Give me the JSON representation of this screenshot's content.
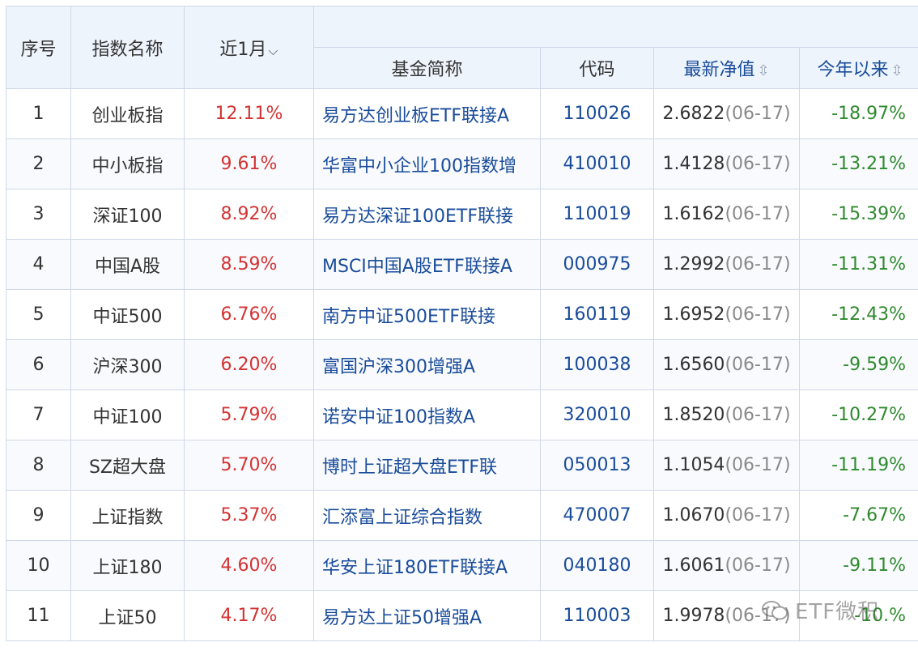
{
  "header": {
    "col_index": "序号",
    "col_name": "指数名称",
    "col_month": "近1月",
    "month_sort_glyph": "⌵",
    "col_fund": "基金简称",
    "col_code": "代码",
    "col_nav": "最新净值",
    "col_ytd": "今年以来",
    "sort_glyph": "⇳"
  },
  "rows": [
    {
      "idx": "1",
      "name": "创业板指",
      "month": "12.11%",
      "fund": "易方达创业板ETF联接A",
      "code": "110026",
      "nav": "2.6822",
      "date": "(06-17)",
      "ytd": "-18.97%"
    },
    {
      "idx": "2",
      "name": "中小板指",
      "month": "9.61%",
      "fund": "华富中小企业100指数增",
      "code": "410010",
      "nav": "1.4128",
      "date": "(06-17)",
      "ytd": "-13.21%"
    },
    {
      "idx": "3",
      "name": "深证100",
      "month": "8.92%",
      "fund": "易方达深证100ETF联接",
      "code": "110019",
      "nav": "1.6162",
      "date": "(06-17)",
      "ytd": "-15.39%"
    },
    {
      "idx": "4",
      "name": "中国A股",
      "month": "8.59%",
      "fund": "MSCI中国A股ETF联接A",
      "code": "000975",
      "nav": "1.2992",
      "date": "(06-17)",
      "ytd": "-11.31%"
    },
    {
      "idx": "5",
      "name": "中证500",
      "month": "6.76%",
      "fund": "南方中证500ETF联接",
      "code": "160119",
      "nav": "1.6952",
      "date": "(06-17)",
      "ytd": "-12.43%"
    },
    {
      "idx": "6",
      "name": "沪深300",
      "month": "6.20%",
      "fund": "富国沪深300增强A",
      "code": "100038",
      "nav": "1.6560",
      "date": "(06-17)",
      "ytd": "-9.59%"
    },
    {
      "idx": "7",
      "name": "中证100",
      "month": "5.79%",
      "fund": "诺安中证100指数A",
      "code": "320010",
      "nav": "1.8520",
      "date": "(06-17)",
      "ytd": "-10.27%"
    },
    {
      "idx": "8",
      "name": "SZ超大盘",
      "month": "5.70%",
      "fund": "博时上证超大盘ETF联",
      "code": "050013",
      "nav": "1.1054",
      "date": "(06-17)",
      "ytd": "-11.19%"
    },
    {
      "idx": "9",
      "name": "上证指数",
      "month": "5.37%",
      "fund": "汇添富上证综合指数",
      "code": "470007",
      "nav": "1.0670",
      "date": "(06-17)",
      "ytd": "-7.67%"
    },
    {
      "idx": "10",
      "name": "上证180",
      "month": "4.60%",
      "fund": "华安上证180ETF联接A",
      "code": "040180",
      "nav": "1.6061",
      "date": "(06-17)",
      "ytd": "-9.11%"
    },
    {
      "idx": "11",
      "name": "上证50",
      "month": "4.17%",
      "fund": "易方达上证50增强A",
      "code": "110003",
      "nav": "1.9978",
      "date": "(06-17)",
      "ytd": "-10.%"
    }
  ],
  "watermark": {
    "text": "ETF微积",
    "icon": "wechat-icon"
  },
  "colors": {
    "up": "#d33333",
    "down": "#2f8a2f",
    "link": "#1a4c9a",
    "header_bg": "#eef4fc",
    "border": "#cfd8e8"
  }
}
